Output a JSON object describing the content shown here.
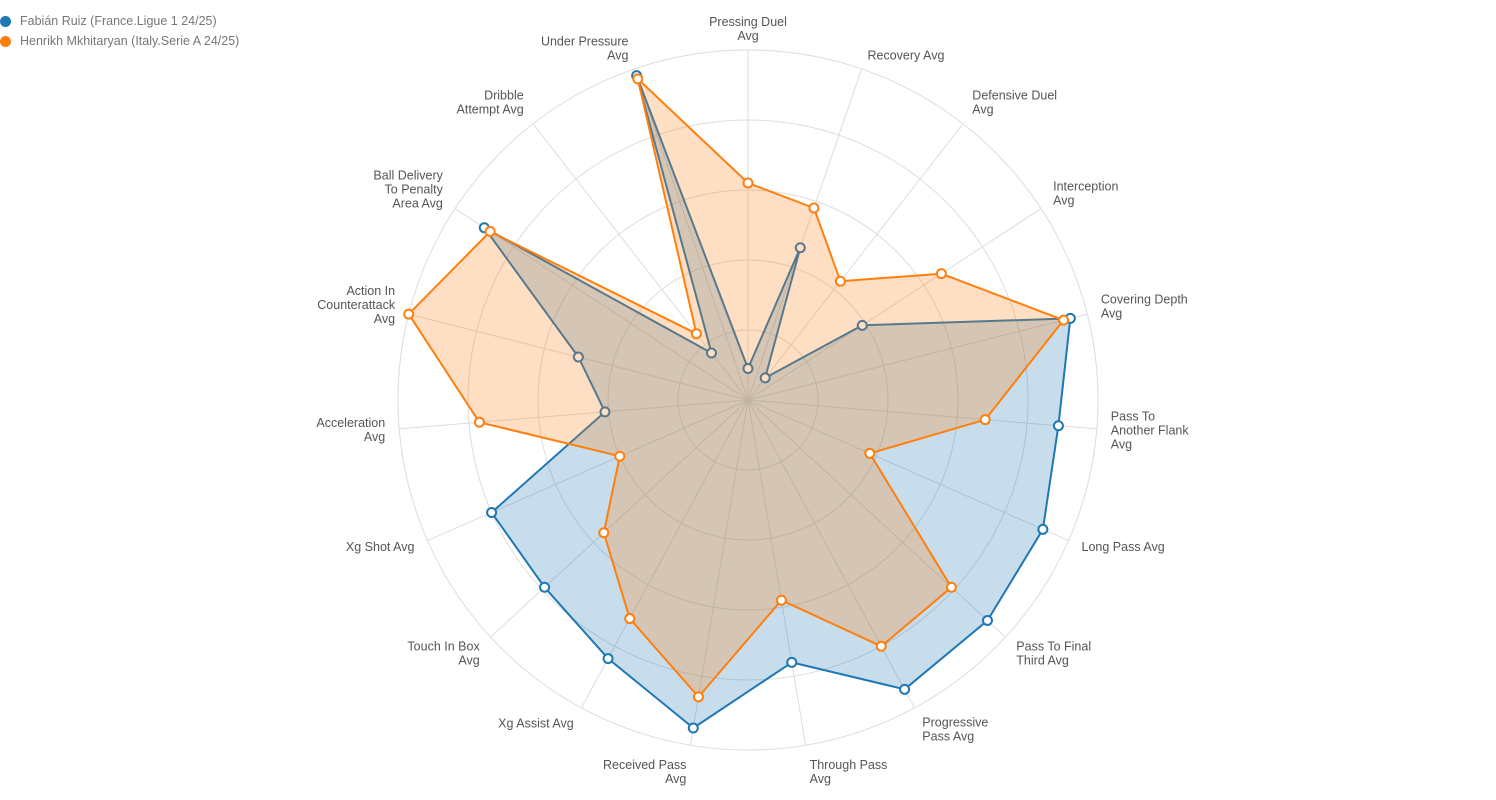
{
  "chart_data": {
    "type": "radar",
    "title": "",
    "max": 100,
    "grid": true,
    "legend_position": "top-left",
    "axes": [
      "Pressing Duel\nAvg",
      "Recovery Avg",
      "Defensive Duel\nAvg",
      "Interception\nAvg",
      "Covering Depth\nAvg",
      "Pass To\nAnother Flank\nAvg",
      "Long Pass Avg",
      "Pass To Final\nThird Avg",
      "Progressive\nPass Avg",
      "Through Pass\nAvg",
      "Received Pass\nAvg",
      "Xg Assist Avg",
      "Touch In Box\nAvg",
      "Xg Shot Avg",
      "Acceleration\nAvg",
      "Action In\nCounterattack\nAvg",
      "Ball Delivery\nTo Penalty\nArea Avg",
      "Dribble\nAttempt Avg",
      "Under Pressure\nAvg"
    ],
    "series": [
      {
        "name": "Fabián Ruiz (France.Ligue 1 24/25)",
        "color": "#1f77b4",
        "values": [
          9,
          46,
          8,
          39,
          95,
          89,
          92,
          93,
          94,
          76,
          95,
          84,
          79,
          80,
          41,
          50,
          90,
          17,
          98
        ]
      },
      {
        "name": "Henrikh Mkhitaryan (Italy.Serie A 24/25)",
        "color": "#ff7f0e",
        "values": [
          62,
          58,
          43,
          66,
          93,
          68,
          38,
          79,
          80,
          58,
          86,
          71,
          56,
          40,
          77,
          100,
          88,
          24,
          97
        ]
      }
    ]
  }
}
